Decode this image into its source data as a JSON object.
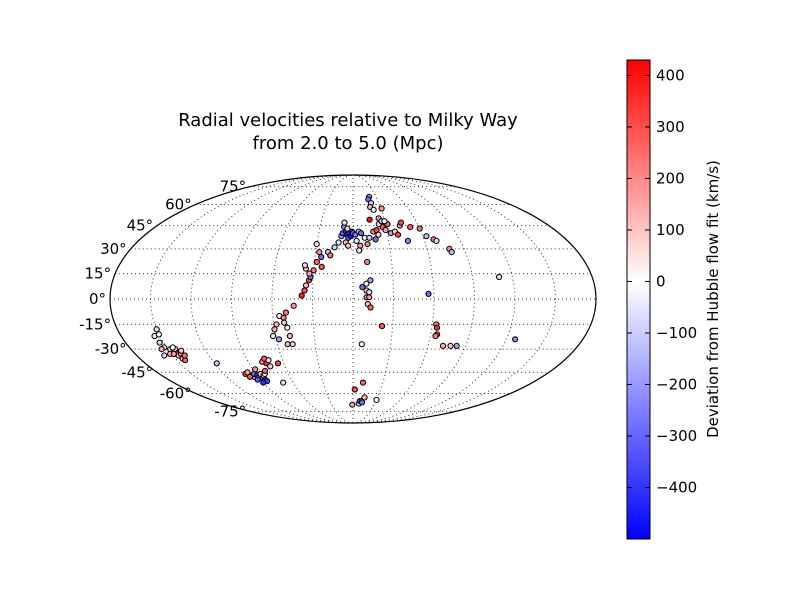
{
  "chart_data": {
    "type": "scatter",
    "projection": "mollweide",
    "title_line1": "Radial velocities relative to Milky Way",
    "title_line2": "from 2.0 to 5.0 (Mpc)",
    "lat_tick_labels": [
      "75°",
      "60°",
      "45°",
      "30°",
      "15°",
      "0°",
      "-15°",
      "-30°",
      "-45°",
      "-60°",
      "-75°"
    ],
    "lat_ticks": [
      75,
      60,
      45,
      30,
      15,
      0,
      -15,
      -30,
      -45,
      -60,
      -75
    ],
    "meridians": [
      -150,
      -120,
      -90,
      -60,
      -30,
      0,
      30,
      60,
      90,
      120,
      150
    ],
    "colorbar": {
      "label": "Deviation from Hubble flow fit (km/s)",
      "range": [
        -500,
        430
      ],
      "tick_values": [
        400,
        300,
        200,
        100,
        0,
        -100,
        -200,
        -300,
        -400
      ],
      "tick_labels": [
        "400",
        "300",
        "200",
        "100",
        "0",
        "−100",
        "−200",
        "−300",
        "−400"
      ],
      "colormap": [
        "#0000ff",
        "#ffffff",
        "#ff0000"
      ]
    },
    "points": [
      {
        "lon": -154,
        "lat": -22,
        "v": -60
      },
      {
        "lon": -150,
        "lat": -18,
        "v": -80
      },
      {
        "lon": -153,
        "lat": -26,
        "v": -120
      },
      {
        "lon": -152,
        "lat": -29,
        "v": -40
      },
      {
        "lon": -155,
        "lat": -30,
        "v": 120
      },
      {
        "lon": -151,
        "lat": -33,
        "v": 90
      },
      {
        "lon": -157,
        "lat": -34,
        "v": -90
      },
      {
        "lon": -148,
        "lat": -30,
        "v": 60
      },
      {
        "lon": -146,
        "lat": -31,
        "v": 150
      },
      {
        "lon": -144,
        "lat": -30,
        "v": 40
      },
      {
        "lon": -143,
        "lat": -32,
        "v": 130
      },
      {
        "lon": -146,
        "lat": -33,
        "v": 200
      },
      {
        "lon": -145,
        "lat": -34,
        "v": 80
      },
      {
        "lon": -142,
        "lat": -33,
        "v": 180
      },
      {
        "lon": -142,
        "lat": -35,
        "v": 60
      },
      {
        "lon": -144,
        "lat": -36,
        "v": 110
      },
      {
        "lon": -143,
        "lat": -37,
        "v": 250
      },
      {
        "lon": -140,
        "lat": -31,
        "v": 70
      },
      {
        "lon": -140,
        "lat": -34,
        "v": 220
      },
      {
        "lon": -145,
        "lat": -29,
        "v": -30
      },
      {
        "lon": -148,
        "lat": -33,
        "v": 160
      },
      {
        "lon": -150,
        "lat": -21,
        "v": -20
      },
      {
        "lon": -100,
        "lat": -46,
        "v": 300
      },
      {
        "lon": -97,
        "lat": -45,
        "v": 120
      },
      {
        "lon": -95,
        "lat": -47,
        "v": -150
      },
      {
        "lon": -94,
        "lat": -48,
        "v": -200
      },
      {
        "lon": -92,
        "lat": -46,
        "v": -300
      },
      {
        "lon": -90,
        "lat": -47,
        "v": -400
      },
      {
        "lon": -89,
        "lat": -48,
        "v": -250
      },
      {
        "lon": -87,
        "lat": -49,
        "v": -350
      },
      {
        "lon": -86,
        "lat": -50,
        "v": -450
      },
      {
        "lon": -85,
        "lat": -51,
        "v": -380
      },
      {
        "lon": -86,
        "lat": -46,
        "v": 100
      },
      {
        "lon": -84,
        "lat": -47,
        "v": -100
      },
      {
        "lon": -82,
        "lat": -46,
        "v": -60
      },
      {
        "lon": -80,
        "lat": -44,
        "v": 250
      },
      {
        "lon": -78,
        "lat": -38,
        "v": 200
      },
      {
        "lon": -75,
        "lat": -36,
        "v": 260
      },
      {
        "lon": -75,
        "lat": -39,
        "v": 350
      },
      {
        "lon": -73,
        "lat": -41,
        "v": 60
      },
      {
        "lon": -72,
        "lat": -37,
        "v": -90
      },
      {
        "lon": -88,
        "lat": -43,
        "v": 170
      },
      {
        "lon": -98,
        "lat": -48,
        "v": 280
      },
      {
        "lon": -118,
        "lat": -39,
        "v": -140
      },
      {
        "lon": -93,
        "lat": -50,
        "v": -320
      },
      {
        "lon": -90,
        "lat": -52,
        "v": -420
      },
      {
        "lon": -70,
        "lat": -52,
        "v": 30
      },
      {
        "lon": -65,
        "lat": -39,
        "v": 300
      },
      {
        "lon": -60,
        "lat": -18,
        "v": 120
      },
      {
        "lon": -62,
        "lat": -22,
        "v": -80
      },
      {
        "lon": -58,
        "lat": -15,
        "v": 80
      },
      {
        "lon": -55,
        "lat": -10,
        "v": -60
      },
      {
        "lon": -52,
        "lat": -11,
        "v": 200
      },
      {
        "lon": -50,
        "lat": -8,
        "v": 220
      },
      {
        "lon": -52,
        "lat": -14,
        "v": 60
      },
      {
        "lon": -50,
        "lat": -17,
        "v": -40
      },
      {
        "lon": -49,
        "lat": -22,
        "v": 100
      },
      {
        "lon": -52,
        "lat": -27,
        "v": 90
      },
      {
        "lon": -48,
        "lat": -27,
        "v": 70
      },
      {
        "lon": -58,
        "lat": -24,
        "v": -210
      },
      {
        "lon": -44,
        "lat": -4,
        "v": 150
      },
      {
        "lon": -38,
        "lat": 2,
        "v": 380
      },
      {
        "lon": -36,
        "lat": 5,
        "v": 280
      },
      {
        "lon": -35,
        "lat": 8,
        "v": 100
      },
      {
        "lon": -33,
        "lat": 11,
        "v": 300
      },
      {
        "lon": -32,
        "lat": 13,
        "v": -300
      },
      {
        "lon": -33,
        "lat": 15,
        "v": 120
      },
      {
        "lon": -36,
        "lat": 18,
        "v": 90
      },
      {
        "lon": -37,
        "lat": 20,
        "v": -80
      },
      {
        "lon": -30,
        "lat": 17,
        "v": 200
      },
      {
        "lon": -28,
        "lat": 22,
        "v": 250
      },
      {
        "lon": -24,
        "lat": 19,
        "v": 280
      },
      {
        "lon": -25,
        "lat": 25,
        "v": -300
      },
      {
        "lon": -27,
        "lat": 28,
        "v": 160
      },
      {
        "lon": -30,
        "lat": 33,
        "v": 40
      },
      {
        "lon": -20,
        "lat": 28,
        "v": -150
      },
      {
        "lon": -18,
        "lat": 26,
        "v": 220
      },
      {
        "lon": -15,
        "lat": 31,
        "v": -120
      },
      {
        "lon": -12,
        "lat": 34,
        "v": -80
      },
      {
        "lon": -10,
        "lat": 38,
        "v": -200
      },
      {
        "lon": -9,
        "lat": 40,
        "v": -350
      },
      {
        "lon": -8,
        "lat": 44,
        "v": -250
      },
      {
        "lon": -6,
        "lat": 41,
        "v": -420
      },
      {
        "lon": -5,
        "lat": 39,
        "v": -460
      },
      {
        "lon": -3,
        "lat": 40,
        "v": -380
      },
      {
        "lon": -4,
        "lat": 37,
        "v": -300
      },
      {
        "lon": -2,
        "lat": 38,
        "v": -470
      },
      {
        "lon": -1,
        "lat": 41,
        "v": -400
      },
      {
        "lon": 0,
        "lat": 40,
        "v": -330
      },
      {
        "lon": 2,
        "lat": 39,
        "v": -280
      },
      {
        "lon": -6,
        "lat": 34,
        "v": 100
      },
      {
        "lon": -4,
        "lat": 32,
        "v": 80
      },
      {
        "lon": -8,
        "lat": 47,
        "v": -100
      },
      {
        "lon": -5,
        "lat": 43,
        "v": 60
      },
      {
        "lon": 5,
        "lat": 41,
        "v": -150
      },
      {
        "lon": 7,
        "lat": 40,
        "v": -300
      },
      {
        "lon": 3,
        "lat": 35,
        "v": -60
      },
      {
        "lon": 6,
        "lat": 32,
        "v": 140
      },
      {
        "lon": 10,
        "lat": 37,
        "v": -60
      },
      {
        "lon": 12,
        "lat": 33,
        "v": 200
      },
      {
        "lon": 14,
        "lat": 37,
        "v": -120
      },
      {
        "lon": 5,
        "lat": 29,
        "v": -80
      },
      {
        "lon": 11,
        "lat": 22,
        "v": 200
      },
      {
        "lon": 7,
        "lat": 7,
        "v": -300
      },
      {
        "lon": 10,
        "lat": 5,
        "v": 80
      },
      {
        "lon": 12,
        "lat": 4,
        "v": -100
      },
      {
        "lon": 10,
        "lat": 1,
        "v": 200
      },
      {
        "lon": 12,
        "lat": 1,
        "v": 150
      },
      {
        "lon": 11,
        "lat": -3,
        "v": 100
      },
      {
        "lon": 13,
        "lat": -5,
        "v": 250
      },
      {
        "lon": 13,
        "lat": 11,
        "v": -200
      },
      {
        "lon": 10,
        "lat": 9,
        "v": -50
      },
      {
        "lon": 7,
        "lat": -27,
        "v": -50
      },
      {
        "lon": 22,
        "lat": -16,
        "v": 280
      },
      {
        "lon": 16,
        "lat": 49,
        "v": 400
      },
      {
        "lon": 18,
        "lat": 41,
        "v": 200
      },
      {
        "lon": 21,
        "lat": 42,
        "v": 300
      },
      {
        "lon": 19,
        "lat": 36,
        "v": -300
      },
      {
        "lon": 22,
        "lat": 39,
        "v": 60
      },
      {
        "lon": 24,
        "lat": 46,
        "v": -100
      },
      {
        "lon": 25,
        "lat": 50,
        "v": 160
      },
      {
        "lon": 27,
        "lat": 48,
        "v": -150
      },
      {
        "lon": 27,
        "lat": 44,
        "v": 280
      },
      {
        "lon": 32,
        "lat": 46,
        "v": 250
      },
      {
        "lon": 30,
        "lat": 48,
        "v": -60
      },
      {
        "lon": 29,
        "lat": 42,
        "v": 120
      },
      {
        "lon": 33,
        "lat": 40,
        "v": -200
      },
      {
        "lon": 37,
        "lat": 41,
        "v": 70
      },
      {
        "lon": 39,
        "lat": 39,
        "v": 300
      },
      {
        "lon": 43,
        "lat": 45,
        "v": 180
      },
      {
        "lon": 45,
        "lat": 47,
        "v": 300
      },
      {
        "lon": 46,
        "lat": 35,
        "v": -250
      },
      {
        "lon": 52,
        "lat": 44,
        "v": 260
      },
      {
        "lon": 60,
        "lat": 43,
        "v": 220
      },
      {
        "lon": 63,
        "lat": 38,
        "v": -150
      },
      {
        "lon": 68,
        "lat": 36,
        "v": 200
      },
      {
        "lon": 70,
        "lat": 35,
        "v": -100
      },
      {
        "lon": 78,
        "lat": 30,
        "v": 180
      },
      {
        "lon": 79,
        "lat": 28,
        "v": -150
      },
      {
        "lon": 21,
        "lat": 66,
        "v": -200
      },
      {
        "lon": 19,
        "lat": 64,
        "v": -300
      },
      {
        "lon": 21,
        "lat": 61,
        "v": -120
      },
      {
        "lon": 19,
        "lat": 58,
        "v": 100
      },
      {
        "lon": 22,
        "lat": 56,
        "v": -60
      },
      {
        "lon": 31,
        "lat": 57,
        "v": 160
      },
      {
        "lon": 56,
        "lat": 3,
        "v": -300
      },
      {
        "lon": 63,
        "lat": -15,
        "v": 200
      },
      {
        "lon": 64,
        "lat": -17,
        "v": 350
      },
      {
        "lon": 65,
        "lat": -21,
        "v": 300
      },
      {
        "lon": 64,
        "lat": -22,
        "v": 200
      },
      {
        "lon": 72,
        "lat": -28,
        "v": 120
      },
      {
        "lon": 78,
        "lat": -28,
        "v": 80
      },
      {
        "lon": 83,
        "lat": -28,
        "v": -200
      },
      {
        "lon": 110,
        "lat": 13,
        "v": -100
      },
      {
        "lon": 127,
        "lat": -24,
        "v": -250
      },
      {
        "lon": 2,
        "lat": -57,
        "v": 300
      },
      {
        "lon": 8,
        "lat": -68,
        "v": -100
      },
      {
        "lon": 9,
        "lat": -66,
        "v": 60
      },
      {
        "lon": 11,
        "lat": -66,
        "v": -200
      },
      {
        "lon": 12,
        "lat": -67,
        "v": -300
      },
      {
        "lon": -1,
        "lat": -69,
        "v": 150
      },
      {
        "lon": 14,
        "lat": -63,
        "v": 100
      },
      {
        "lon": 30,
        "lat": -65,
        "v": -50
      },
      {
        "lon": 10,
        "lat": -52,
        "v": 250
      }
    ]
  }
}
